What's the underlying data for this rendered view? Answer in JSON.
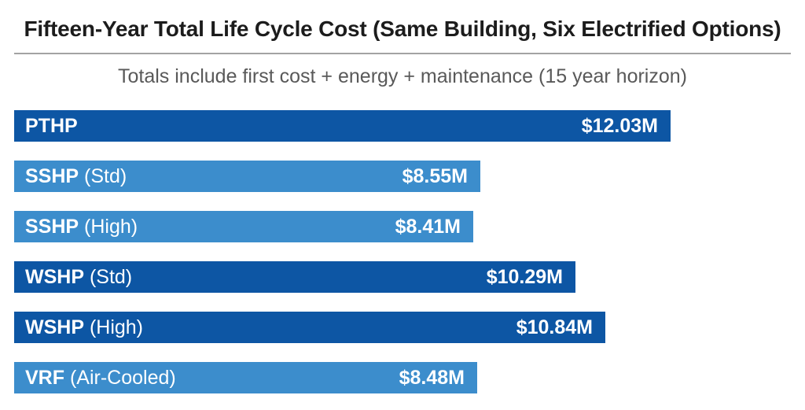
{
  "header": {
    "title": "Fifteen-Year Total Life Cycle Cost (Same Building, Six Electrified Options)",
    "subtitle": "Totals include first cost + energy + maintenance (15 year horizon)"
  },
  "colors": {
    "dark_blue": "#0d56a4",
    "light_blue": "#3c8dcc",
    "title_text": "#1c1c1c",
    "subtitle_text": "#595959",
    "divider": "#a3a3a3",
    "bar_text": "#ffffff"
  },
  "chart_data": {
    "type": "bar",
    "orientation": "horizontal",
    "title": "Fifteen-Year Total Life Cycle Cost (Same Building, Six Electrified Options)",
    "subtitle": "Totals include first cost + energy + maintenance (15 year horizon)",
    "unit": "$M (USD millions)",
    "value_axis_range": [
      0,
      12.03
    ],
    "grid": false,
    "legend": false,
    "bars": [
      {
        "name": "PTHP",
        "qualifier": "",
        "value": 12.03,
        "value_label": "$12.03M",
        "shade": "dark"
      },
      {
        "name": "SSHP",
        "qualifier": "(Std)",
        "value": 8.55,
        "value_label": "$8.55M",
        "shade": "light"
      },
      {
        "name": "SSHP",
        "qualifier": "(High)",
        "value": 8.41,
        "value_label": "$8.41M",
        "shade": "light"
      },
      {
        "name": "WSHP",
        "qualifier": "(Std)",
        "value": 10.29,
        "value_label": "$10.29M",
        "shade": "dark"
      },
      {
        "name": "WSHP",
        "qualifier": "(High)",
        "value": 10.84,
        "value_label": "$10.84M",
        "shade": "dark"
      },
      {
        "name": "VRF",
        "qualifier": "(Air-Cooled)",
        "value": 8.48,
        "value_label": "$8.48M",
        "shade": "light"
      }
    ]
  }
}
